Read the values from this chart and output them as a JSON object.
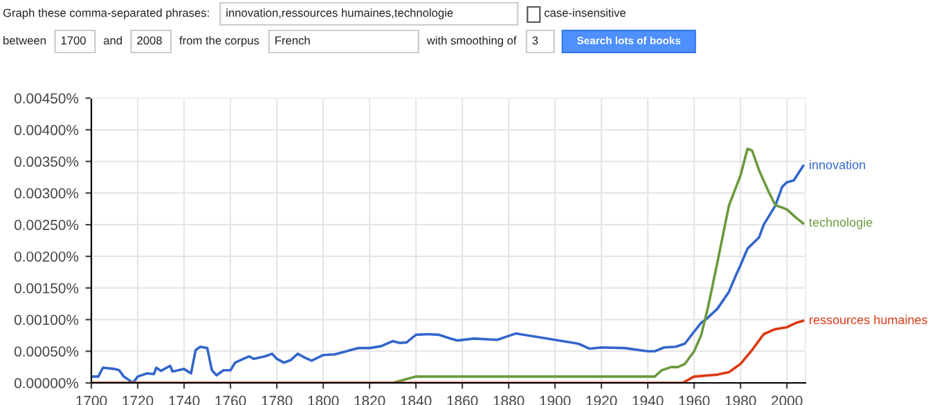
{
  "chart_data": {
    "type": "line",
    "annotations": [
      "Graph these comma-separated phrases:",
      "innovation,ressources humaines,technologie",
      "case-insensitive",
      "between",
      "1700",
      "and",
      "2008",
      "from the corpus",
      "French",
      "with smoothing of",
      "3",
      "Search lots of books"
    ],
    "xlim": [
      1700,
      2008
    ],
    "xticks": [
      1700,
      1720,
      1740,
      1760,
      1780,
      1800,
      1820,
      1840,
      1860,
      1880,
      1900,
      1920,
      1940,
      1960,
      1980,
      2000
    ],
    "ylim": [
      0,
      0.0045
    ],
    "yticks": [
      {
        "value": 0,
        "label": "0.00000%"
      },
      {
        "value": 0.0005,
        "label": "0.00050%"
      },
      {
        "value": 0.001,
        "label": "0.00100%"
      },
      {
        "value": 0.0015,
        "label": "0.00150%"
      },
      {
        "value": 0.002,
        "label": "0.00200%"
      },
      {
        "value": 0.0025,
        "label": "0.00250%"
      },
      {
        "value": 0.003,
        "label": "0.00300%"
      },
      {
        "value": 0.0035,
        "label": "0.00350%"
      },
      {
        "value": 0.004,
        "label": "0.00400%"
      },
      {
        "value": 0.0045,
        "label": "0.00450%"
      }
    ],
    "grid": true,
    "legend": false,
    "marker": "none",
    "line_style": "solid",
    "series": [
      {
        "name": "innovation",
        "color": "#3366cc",
        "x": [
          1700,
          1703,
          1705,
          1710,
          1712,
          1714,
          1718,
          1720,
          1724,
          1727,
          1728,
          1730,
          1734,
          1735,
          1740,
          1743,
          1745,
          1747,
          1750,
          1752,
          1754,
          1757,
          1760,
          1762,
          1768,
          1770,
          1775,
          1778,
          1780,
          1783,
          1786,
          1789,
          1792,
          1795,
          1800,
          1805,
          1810,
          1815,
          1820,
          1825,
          1830,
          1833,
          1836,
          1840,
          1845,
          1850,
          1855,
          1858,
          1865,
          1875,
          1883,
          1890,
          1900,
          1910,
          1915,
          1920,
          1930,
          1940,
          1943,
          1947,
          1952,
          1956,
          1960,
          1963,
          1965,
          1970,
          1975,
          1978,
          1980,
          1983,
          1988,
          1990,
          1995,
          1998,
          2000,
          2003,
          2007
        ],
        "values": [
          0.0001,
          0.0001,
          0.00024,
          0.00022,
          0.0002,
          0.0001,
          0,
          0.0001,
          0.00015,
          0.00014,
          0.00024,
          0.00019,
          0.00027,
          0.00018,
          0.00022,
          0.00015,
          0.00052,
          0.00057,
          0.00055,
          0.0002,
          0.00012,
          0.0002,
          0.0002,
          0.00032,
          0.00042,
          0.00038,
          0.00042,
          0.00046,
          0.00038,
          0.00032,
          0.00036,
          0.00046,
          0.0004,
          0.00035,
          0.00044,
          0.00045,
          0.0005,
          0.00055,
          0.00055,
          0.00058,
          0.00066,
          0.00063,
          0.00064,
          0.00076,
          0.00077,
          0.00076,
          0.0007,
          0.00067,
          0.0007,
          0.00068,
          0.00078,
          0.00074,
          0.00068,
          0.00062,
          0.00054,
          0.00056,
          0.00055,
          0.0005,
          0.0005,
          0.00056,
          0.00057,
          0.00062,
          0.00081,
          0.00095,
          0.001,
          0.00117,
          0.00144,
          0.0017,
          0.00186,
          0.00212,
          0.0023,
          0.0025,
          0.0028,
          0.0031,
          0.00317,
          0.0032,
          0.00343
        ]
      },
      {
        "name": "technologie",
        "color": "#6b9a3d",
        "x": [
          1700,
          1800,
          1830,
          1840,
          1860,
          1900,
          1940,
          1943,
          1946,
          1950,
          1953,
          1956,
          1960,
          1963,
          1966,
          1970,
          1975,
          1980,
          1983,
          1985,
          1988,
          1992,
          1995,
          1998,
          2000,
          2004,
          2007
        ],
        "values": [
          0,
          0,
          0,
          0.0001,
          0.0001,
          0.0001,
          0.0001,
          0.0001,
          0.0002,
          0.00025,
          0.00025,
          0.0003,
          0.0005,
          0.00075,
          0.0012,
          0.0019,
          0.0028,
          0.00328,
          0.0037,
          0.00367,
          0.00336,
          0.00303,
          0.00281,
          0.00277,
          0.00274,
          0.00261,
          0.00252
        ]
      },
      {
        "name": "ressources humaines",
        "color": "#dc3912",
        "x": [
          1700,
          1805,
          1950,
          1955,
          1960,
          1970,
          1975,
          1980,
          1985,
          1990,
          1995,
          2000,
          2004,
          2007
        ],
        "values": [
          0,
          0,
          0,
          0,
          0.0001,
          0.00013,
          0.00017,
          0.0003,
          0.00052,
          0.00077,
          0.00085,
          0.00088,
          0.00095,
          0.00098
        ]
      }
    ]
  }
}
